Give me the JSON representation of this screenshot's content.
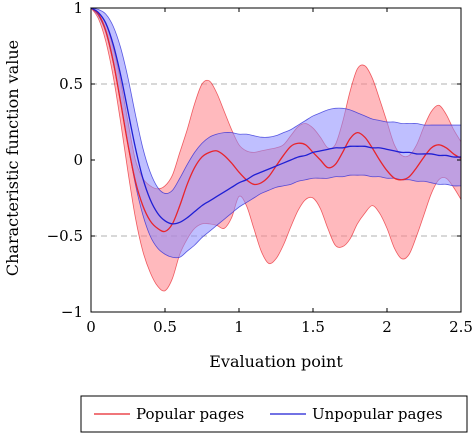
{
  "chart_data": {
    "type": "line",
    "xlabel": "Evaluation point",
    "ylabel": "Characteristic function value",
    "xlim": [
      0,
      2.5
    ],
    "ylim": [
      -1,
      1
    ],
    "x_ticks": [
      0,
      0.5,
      1,
      1.5,
      2,
      2.5
    ],
    "x_tick_labels": [
      "0",
      "0.5",
      "1",
      "1.5",
      "2",
      "2.5"
    ],
    "y_ticks": [
      -1,
      -0.5,
      0,
      0.5,
      1
    ],
    "y_tick_labels": [
      "−1",
      "−0.5",
      "0",
      "0.5",
      "1"
    ],
    "y_gridlines": [
      -0.5,
      0.5
    ],
    "grid": "dashed horizontal at ±0.5",
    "legend_position": "bottom",
    "series": [
      {
        "name": "Popular pages",
        "color": "#e8242b",
        "fill_color": "#ff7f86",
        "x": [
          0,
          0.05,
          0.1,
          0.15,
          0.2,
          0.25,
          0.3,
          0.35,
          0.4,
          0.45,
          0.5,
          0.55,
          0.6,
          0.65,
          0.7,
          0.75,
          0.8,
          0.85,
          0.9,
          0.95,
          1.0,
          1.05,
          1.1,
          1.15,
          1.2,
          1.25,
          1.3,
          1.35,
          1.4,
          1.45,
          1.5,
          1.55,
          1.6,
          1.65,
          1.7,
          1.75,
          1.8,
          1.85,
          1.9,
          1.95,
          2.0,
          2.05,
          2.1,
          2.15,
          2.2,
          2.25,
          2.3,
          2.35,
          2.4,
          2.45,
          2.5
        ],
        "mean": [
          1.0,
          0.96,
          0.85,
          0.65,
          0.38,
          0.1,
          -0.14,
          -0.3,
          -0.4,
          -0.45,
          -0.47,
          -0.42,
          -0.3,
          -0.16,
          -0.05,
          0.02,
          0.05,
          0.06,
          0.03,
          -0.02,
          -0.08,
          -0.13,
          -0.16,
          -0.15,
          -0.11,
          -0.04,
          0.03,
          0.09,
          0.11,
          0.1,
          0.05,
          0.0,
          -0.05,
          -0.03,
          0.05,
          0.14,
          0.18,
          0.15,
          0.08,
          0.0,
          -0.07,
          -0.12,
          -0.13,
          -0.11,
          -0.05,
          0.02,
          0.08,
          0.1,
          0.08,
          0.04,
          0.01
        ],
        "upper": [
          1.0,
          0.97,
          0.9,
          0.74,
          0.52,
          0.25,
          0.0,
          -0.12,
          -0.17,
          -0.19,
          -0.17,
          -0.1,
          0.05,
          0.2,
          0.37,
          0.5,
          0.52,
          0.44,
          0.32,
          0.2,
          0.1,
          0.06,
          0.05,
          0.06,
          0.07,
          0.08,
          0.1,
          0.16,
          0.22,
          0.24,
          0.21,
          0.15,
          0.08,
          0.1,
          0.25,
          0.45,
          0.6,
          0.62,
          0.54,
          0.4,
          0.25,
          0.1,
          0.03,
          0.03,
          0.1,
          0.22,
          0.32,
          0.36,
          0.3,
          0.2,
          0.12
        ],
        "lower": [
          1.0,
          0.93,
          0.78,
          0.55,
          0.25,
          -0.08,
          -0.38,
          -0.6,
          -0.74,
          -0.83,
          -0.86,
          -0.78,
          -0.62,
          -0.52,
          -0.45,
          -0.42,
          -0.42,
          -0.43,
          -0.45,
          -0.38,
          -0.24,
          -0.3,
          -0.45,
          -0.6,
          -0.68,
          -0.65,
          -0.56,
          -0.44,
          -0.33,
          -0.26,
          -0.25,
          -0.32,
          -0.45,
          -0.56,
          -0.57,
          -0.52,
          -0.42,
          -0.35,
          -0.3,
          -0.35,
          -0.45,
          -0.58,
          -0.65,
          -0.62,
          -0.5,
          -0.36,
          -0.22,
          -0.13,
          -0.12,
          -0.18,
          -0.26
        ]
      },
      {
        "name": "Unpopular pages",
        "color": "#1f1fd4",
        "fill_color": "#8a8aff",
        "x": [
          0,
          0.05,
          0.1,
          0.15,
          0.2,
          0.25,
          0.3,
          0.35,
          0.4,
          0.45,
          0.5,
          0.55,
          0.6,
          0.65,
          0.7,
          0.75,
          0.8,
          0.85,
          0.9,
          0.95,
          1.0,
          1.05,
          1.1,
          1.15,
          1.2,
          1.25,
          1.3,
          1.35,
          1.4,
          1.45,
          1.5,
          1.55,
          1.6,
          1.65,
          1.7,
          1.75,
          1.8,
          1.85,
          1.9,
          1.95,
          2.0,
          2.05,
          2.1,
          2.15,
          2.2,
          2.25,
          2.3,
          2.35,
          2.4,
          2.45,
          2.5
        ],
        "mean": [
          1.0,
          0.97,
          0.9,
          0.76,
          0.56,
          0.32,
          0.08,
          -0.12,
          -0.26,
          -0.35,
          -0.4,
          -0.42,
          -0.41,
          -0.38,
          -0.34,
          -0.3,
          -0.27,
          -0.24,
          -0.21,
          -0.18,
          -0.15,
          -0.13,
          -0.1,
          -0.08,
          -0.06,
          -0.04,
          -0.02,
          0.0,
          0.02,
          0.03,
          0.05,
          0.06,
          0.07,
          0.08,
          0.08,
          0.09,
          0.09,
          0.09,
          0.08,
          0.08,
          0.07,
          0.06,
          0.05,
          0.05,
          0.04,
          0.04,
          0.04,
          0.03,
          0.03,
          0.02,
          0.02
        ],
        "upper": [
          1.0,
          0.99,
          0.96,
          0.88,
          0.74,
          0.54,
          0.3,
          0.08,
          -0.08,
          -0.18,
          -0.22,
          -0.2,
          -0.12,
          -0.03,
          0.05,
          0.11,
          0.15,
          0.17,
          0.18,
          0.18,
          0.17,
          0.17,
          0.16,
          0.15,
          0.15,
          0.16,
          0.18,
          0.2,
          0.23,
          0.26,
          0.29,
          0.31,
          0.33,
          0.34,
          0.34,
          0.33,
          0.31,
          0.29,
          0.27,
          0.26,
          0.25,
          0.25,
          0.24,
          0.24,
          0.24,
          0.23,
          0.23,
          0.23,
          0.23,
          0.23,
          0.23
        ],
        "lower": [
          1.0,
          0.95,
          0.84,
          0.64,
          0.38,
          0.1,
          -0.16,
          -0.36,
          -0.5,
          -0.58,
          -0.62,
          -0.64,
          -0.64,
          -0.6,
          -0.56,
          -0.51,
          -0.47,
          -0.43,
          -0.39,
          -0.35,
          -0.31,
          -0.28,
          -0.25,
          -0.22,
          -0.2,
          -0.18,
          -0.17,
          -0.16,
          -0.14,
          -0.13,
          -0.12,
          -0.12,
          -0.12,
          -0.11,
          -0.11,
          -0.1,
          -0.1,
          -0.1,
          -0.11,
          -0.11,
          -0.12,
          -0.12,
          -0.13,
          -0.13,
          -0.14,
          -0.14,
          -0.15,
          -0.16,
          -0.16,
          -0.17,
          -0.17
        ]
      }
    ]
  }
}
